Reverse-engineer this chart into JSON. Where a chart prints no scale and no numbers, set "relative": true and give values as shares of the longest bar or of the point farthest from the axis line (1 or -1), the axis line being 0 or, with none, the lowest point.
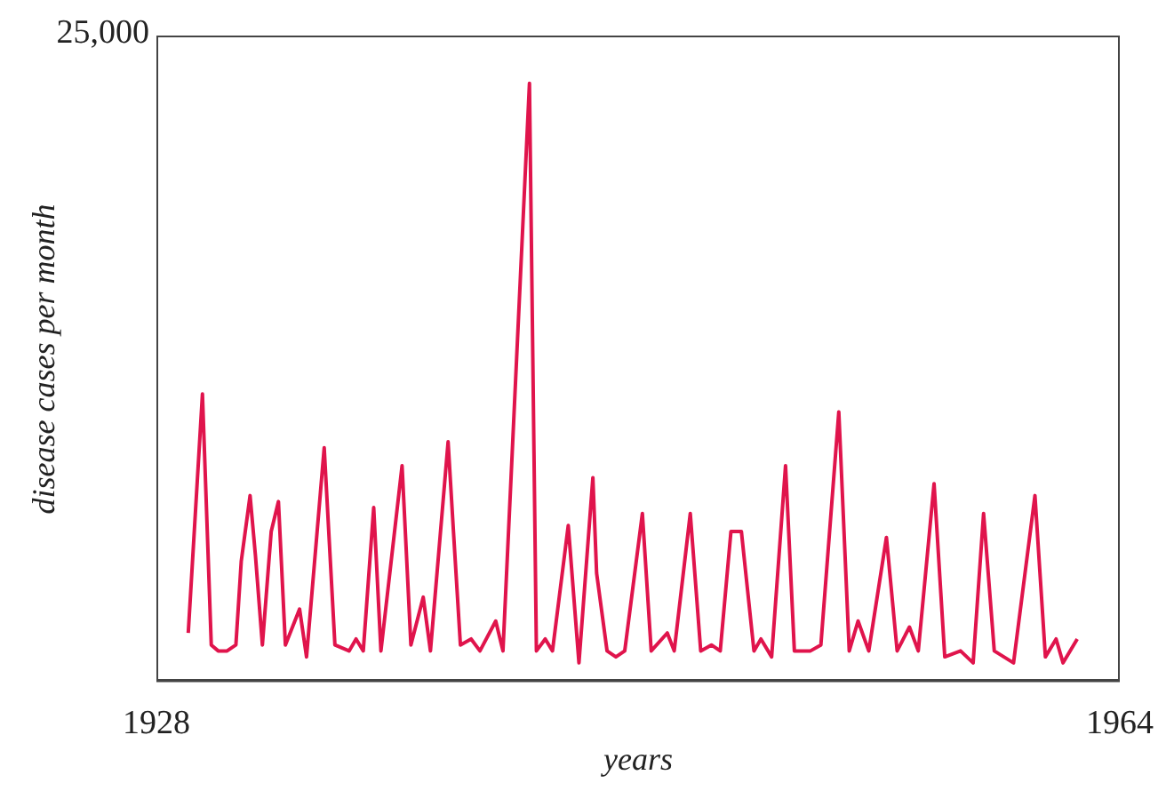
{
  "chart_data": {
    "type": "line",
    "relative": true,
    "xlabel": "years",
    "ylabel": "disease cases per month",
    "annotations": [
      "25,000"
    ],
    "xlim": [
      1928,
      1964
    ],
    "xticks": [
      1928,
      1964
    ],
    "x": [
      1929.19,
      1929.72,
      1930.05,
      1930.31,
      1930.64,
      1930.97,
      1931.17,
      1931.5,
      1931.7,
      1931.96,
      1932.29,
      1932.56,
      1932.82,
      1933.35,
      1933.61,
      1934.27,
      1934.67,
      1935.2,
      1935.46,
      1935.73,
      1936.12,
      1936.39,
      1937.18,
      1937.51,
      1937.97,
      1938.24,
      1938.9,
      1939.1,
      1939.36,
      1939.76,
      1940.09,
      1940.68,
      1940.95,
      1941.94,
      1942.2,
      1942.53,
      1942.8,
      1943.39,
      1943.79,
      1944.31,
      1944.45,
      1944.84,
      1945.17,
      1945.5,
      1946.16,
      1946.49,
      1947.09,
      1947.35,
      1947.95,
      1948.34,
      1948.74,
      1949.07,
      1949.47,
      1949.66,
      1949.86,
      1950.33,
      1950.59,
      1950.99,
      1951.51,
      1951.84,
      1952.44,
      1952.83,
      1953.5,
      1953.89,
      1954.22,
      1954.62,
      1955.28,
      1955.68,
      1956.14,
      1956.47,
      1957.06,
      1957.46,
      1958.05,
      1958.52,
      1958.91,
      1959.31,
      1960.03,
      1960.83,
      1961.22,
      1961.62,
      1961.88,
      1962.41
    ],
    "values": [
      0.08,
      0.48,
      0.06,
      0.05,
      0.05,
      0.06,
      0.2,
      0.31,
      0.21,
      0.06,
      0.25,
      0.3,
      0.06,
      0.12,
      0.04,
      0.39,
      0.06,
      0.05,
      0.07,
      0.05,
      0.29,
      0.05,
      0.36,
      0.06,
      0.14,
      0.05,
      0.4,
      0.25,
      0.06,
      0.07,
      0.05,
      0.1,
      0.05,
      1,
      0.05,
      0.07,
      0.05,
      0.26,
      0.03,
      0.34,
      0.18,
      0.05,
      0.04,
      0.05,
      0.28,
      0.05,
      0.08,
      0.05,
      0.28,
      0.05,
      0.06,
      0.05,
      0.25,
      0.25,
      0.25,
      0.05,
      0.07,
      0.04,
      0.36,
      0.05,
      0.05,
      0.06,
      0.45,
      0.05,
      0.1,
      0.05,
      0.24,
      0.05,
      0.09,
      0.05,
      0.33,
      0.04,
      0.05,
      0.03,
      0.28,
      0.05,
      0.03,
      0.31,
      0.04,
      0.07,
      0.03,
      0.07
    ],
    "color": "#e0144c"
  }
}
